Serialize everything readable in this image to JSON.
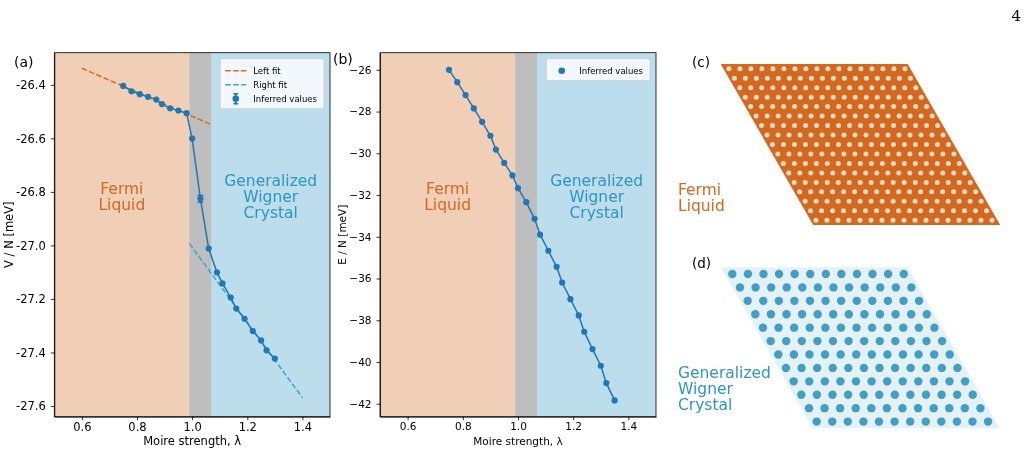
{
  "chart_data": [
    {
      "type": "line",
      "title": "(a)",
      "xlabel": "Moire strength, λ",
      "ylabel": "V / N [meV]",
      "xlim": [
        0.5,
        1.5
      ],
      "xticks": [
        0.6,
        0.8,
        {
          "value": 1,
          "label": "1.0"
        },
        1.2,
        1.4
      ],
      "ylim": [
        -27.64,
        -26.28
      ],
      "yticks": [
        -27.6,
        -27.4,
        -27.2,
        {
          "value": -27,
          "label": "-27.0"
        },
        -26.8,
        -26.6,
        -26.4
      ],
      "bands": [
        {
          "axis": "x",
          "from": 0.5,
          "to": 0.99,
          "label": "Fermi Liquid",
          "color": "#d2691e"
        },
        {
          "axis": "x",
          "from": 0.99,
          "to": 1.07,
          "color": "#343434"
        },
        {
          "axis": "x",
          "from": 1.07,
          "to": 1.5,
          "label": "Generalized Wigner Crystal",
          "color": "#2f96c0"
        }
      ],
      "legend": "top right",
      "series": [
        {
          "name": "Left fit",
          "type": "line",
          "line_style": "dashed",
          "color": "#d9691f",
          "x": [
            0.6,
            1.07
          ],
          "values": [
            -26.338,
            -26.549
          ]
        },
        {
          "name": "Right fit",
          "type": "line",
          "line_style": "dashed",
          "color": "#3aa5cf",
          "x": [
            0.99,
            1.4
          ],
          "values": [
            -26.993,
            -27.569
          ]
        },
        {
          "name": "Inferred values",
          "type": "line",
          "marker": "circle",
          "color": "#1f77b4",
          "x": [
            0.75,
            0.78,
            0.81,
            0.84,
            0.87,
            0.89,
            0.92,
            0.95,
            0.98,
            1.0,
            1.03,
            1.06,
            1.09,
            1.11,
            1.14,
            1.16,
            1.19,
            1.22,
            1.25,
            1.27,
            1.3
          ],
          "values": [
            -26.404,
            -26.424,
            -26.435,
            -26.445,
            -26.455,
            -26.472,
            -26.488,
            -26.496,
            -26.506,
            -26.601,
            -26.826,
            -27.012,
            -27.101,
            -27.142,
            -27.195,
            -27.236,
            -27.274,
            -27.32,
            -27.355,
            -27.392,
            -27.423
          ],
          "errors": [
            null,
            null,
            null,
            null,
            null,
            null,
            null,
            null,
            null,
            null,
            0.013,
            null,
            null,
            null,
            null,
            null,
            null,
            null,
            null,
            null,
            null
          ]
        }
      ]
    },
    {
      "type": "line",
      "title": "(b)",
      "xlabel": "Moire strength, λ",
      "ylabel": "E / N [meV]",
      "xlim": [
        0.5,
        1.5
      ],
      "xticks": [
        0.6,
        0.8,
        {
          "value": 1,
          "label": "1.0"
        },
        1.2,
        1.4
      ],
      "ylim": [
        -42.62,
        -25.18
      ],
      "yticks": [
        {
          "value": -42,
          "label": "−42"
        },
        {
          "value": -40,
          "label": "−40"
        },
        {
          "value": -38,
          "label": "−38"
        },
        {
          "value": -36,
          "label": "−36"
        },
        {
          "value": -34,
          "label": "−34"
        },
        {
          "value": -32,
          "label": "−32"
        },
        {
          "value": -30,
          "label": "−30"
        },
        {
          "value": -28,
          "label": "−28"
        },
        {
          "value": -26,
          "label": "−26"
        }
      ],
      "bands": [
        {
          "axis": "x",
          "from": 0.5,
          "to": 0.99,
          "label": "Fermi Liquid",
          "color": "#d2691e"
        },
        {
          "axis": "x",
          "from": 0.99,
          "to": 1.07,
          "color": "#343434"
        },
        {
          "axis": "x",
          "from": 1.07,
          "to": 1.5,
          "label": "Generalized Wigner Crystal",
          "color": "#2f96c0"
        }
      ],
      "legend": "top right",
      "series": [
        {
          "name": "Inferred values",
          "type": "line",
          "marker": "circle",
          "color": "#1f77b4",
          "x": [
            0.75,
            0.78,
            0.81,
            0.84,
            0.87,
            0.9,
            0.92,
            0.95,
            0.98,
            1.0,
            1.03,
            1.06,
            1.08,
            1.11,
            1.14,
            1.16,
            1.19,
            1.22,
            1.24,
            1.27,
            1.3,
            1.32,
            1.35
          ],
          "values": [
            -26.0,
            -26.59,
            -27.21,
            -27.85,
            -28.49,
            -29.16,
            -29.82,
            -30.46,
            -31.06,
            -31.67,
            -32.34,
            -33.14,
            -33.9,
            -34.67,
            -35.44,
            -36.19,
            -36.99,
            -37.77,
            -38.55,
            -39.38,
            -40.18,
            -41.01,
            -41.84
          ]
        }
      ]
    },
    {
      "type": "other",
      "title": "(c)",
      "color": "#d2691e",
      "annotations": [
        "Fermi Liquid"
      ]
    },
    {
      "type": "other",
      "title": "(d)",
      "color": "#2f96c0",
      "annotations": [
        "Generalized Wigner Crystal"
      ]
    },
    {
      "type": "other",
      "annotations": [
        "4"
      ]
    }
  ]
}
